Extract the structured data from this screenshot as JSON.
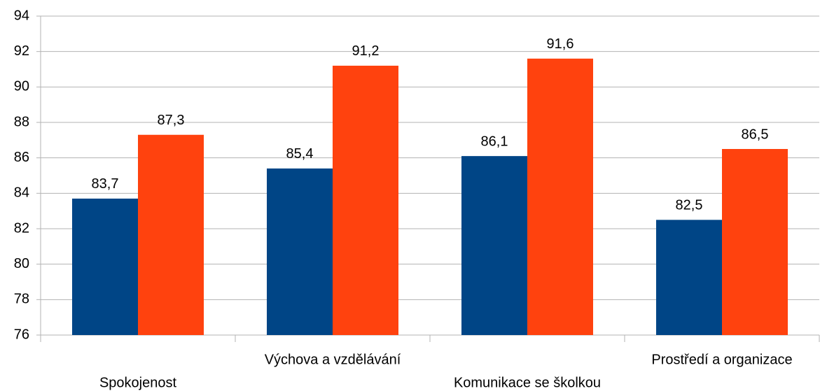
{
  "chart_data": {
    "type": "bar",
    "categories": [
      "Spokojenost",
      "Výchova a vzdělávání",
      "Komunikace se školkou",
      "Prostředí a organizace"
    ],
    "series": [
      {
        "color": "#004586",
        "values": [
          83.7,
          85.4,
          86.1,
          82.5
        ],
        "value_labels": [
          "83,7",
          "85,4",
          "86,1",
          "82,5"
        ]
      },
      {
        "color": "#ff420e",
        "values": [
          87.3,
          91.2,
          91.6,
          86.5
        ],
        "value_labels": [
          "87,3",
          "91,2",
          "91,6",
          "86,5"
        ]
      }
    ],
    "ylim": [
      76,
      94
    ],
    "yticks": [
      76,
      78,
      80,
      82,
      84,
      86,
      88,
      90,
      92,
      94
    ],
    "grid": true
  }
}
